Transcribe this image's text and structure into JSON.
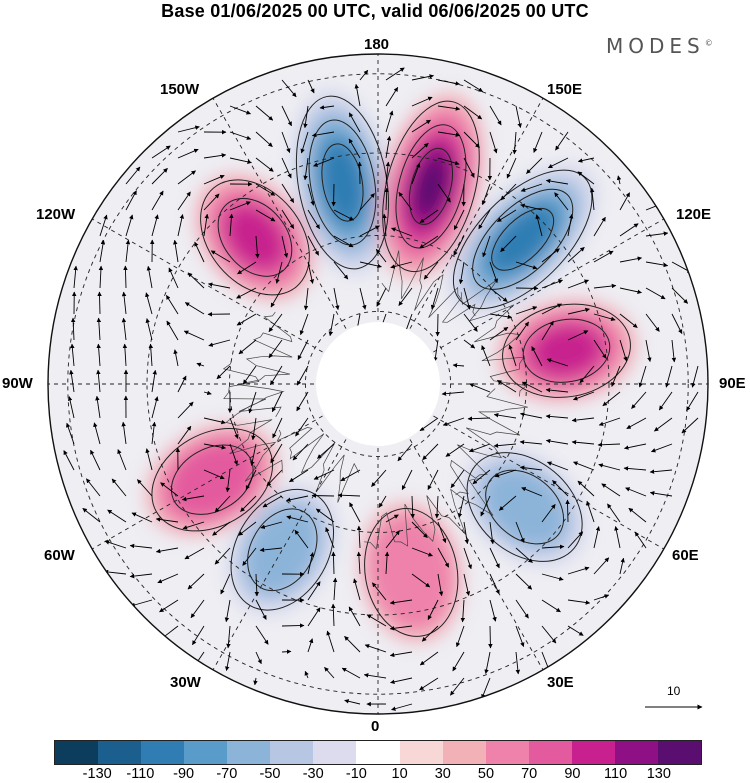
{
  "title": "Base 01/06/2025 00 UTC, valid 06/06/2025 00 UTC",
  "brand": "MODES",
  "brand_mark": "©",
  "map": {
    "projection": "north polar stereographic",
    "longitude_labels": {
      "top": "180",
      "bottom": "0",
      "left": "90W",
      "right": "90E",
      "nw1": "150W",
      "nw2": "120W",
      "sw1": "60W",
      "sw2": "30W",
      "ne1": "150E",
      "ne2": "120E",
      "se1": "60E",
      "se2": "30E"
    },
    "vector_scale_label": "10",
    "anomaly_centers": [
      {
        "sign": "negative",
        "value": -110,
        "sector": "170W"
      },
      {
        "sign": "positive",
        "value": 130,
        "sector": "165E"
      },
      {
        "sign": "negative",
        "value": -110,
        "sector": "135E"
      },
      {
        "sign": "positive",
        "value": 90,
        "sector": "140W"
      },
      {
        "sign": "positive",
        "value": 90,
        "sector": "100E"
      },
      {
        "sign": "negative",
        "value": -70,
        "sector": "50E"
      },
      {
        "sign": "positive",
        "value": 50,
        "sector": "10E"
      },
      {
        "sign": "negative",
        "value": -70,
        "sector": "30W"
      },
      {
        "sign": "positive",
        "value": 70,
        "sector": "60W"
      }
    ]
  },
  "colorbar": {
    "colors": [
      "#0d3d5c",
      "#1b5f8e",
      "#2f7db3",
      "#5a9cc9",
      "#8cb4d9",
      "#b7c7e3",
      "#dcdcee",
      "#ffffff",
      "#f8d7d7",
      "#f2b0b7",
      "#ee82ab",
      "#e35a9e",
      "#c8208e",
      "#8f0f84",
      "#5a0f70"
    ],
    "ticks": [
      "-130",
      "-110",
      "-90",
      "-70",
      "-50",
      "-30",
      "-10",
      "10",
      "30",
      "50",
      "70",
      "90",
      "110",
      "130"
    ]
  }
}
